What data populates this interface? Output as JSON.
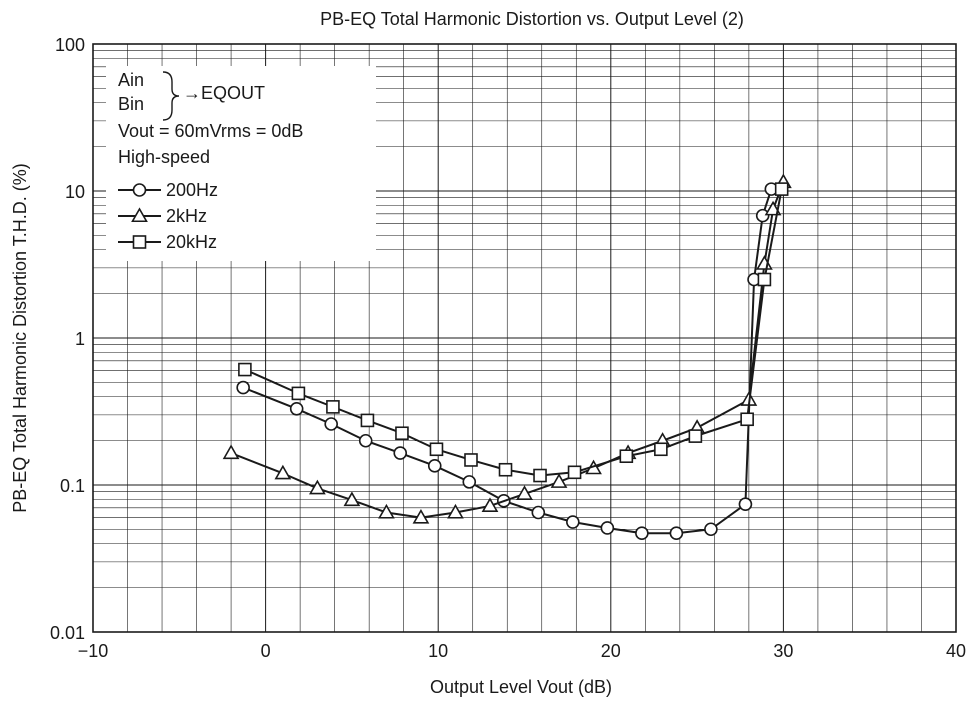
{
  "chart_data": {
    "type": "line",
    "title": "PB-EQ Total Harmonic Distortion vs. Output Level (2)",
    "xlabel": "Output Level  Vout  (dB)",
    "ylabel": "PB-EQ Total Harmonic Distortion  T.H.D.  (%)",
    "xlim": [
      -10,
      40
    ],
    "ylim": [
      0.01,
      100
    ],
    "yscale": "log",
    "grid": true,
    "legend_position": "top-left",
    "x_ticks": [
      "−10",
      "0",
      "10",
      "20",
      "30",
      "40"
    ],
    "y_ticks": [
      "0.01",
      "0.1",
      "1",
      "10",
      "100"
    ],
    "legend_conditions": {
      "line1": "Ain",
      "line2": "Bin",
      "arrow_label": "→EQOUT",
      "line3": "Vout = 60mVrms = 0dB",
      "line4": "High-speed"
    },
    "series": [
      {
        "name": "200Hz",
        "marker": "circle",
        "x": [
          -1.3,
          1.8,
          3.8,
          5.8,
          7.8,
          9.8,
          11.8,
          13.8,
          15.8,
          17.8,
          19.8,
          21.8,
          23.8,
          25.8,
          27.8,
          28.3,
          28.8,
          29.3
        ],
        "y": [
          0.46,
          0.33,
          0.26,
          0.2,
          0.165,
          0.135,
          0.105,
          0.078,
          0.065,
          0.056,
          0.051,
          0.047,
          0.047,
          0.05,
          0.074,
          2.5,
          6.8,
          10.3
        ]
      },
      {
        "name": "2kHz",
        "marker": "triangle",
        "x": [
          -2,
          1,
          3,
          5,
          7,
          9,
          11,
          13,
          15,
          17,
          19,
          21,
          23,
          25,
          28,
          28.9,
          29.4,
          30
        ],
        "y": [
          0.165,
          0.12,
          0.095,
          0.079,
          0.065,
          0.06,
          0.065,
          0.072,
          0.087,
          0.105,
          0.13,
          0.165,
          0.2,
          0.245,
          0.38,
          3.2,
          7.5,
          11.5
        ]
      },
      {
        "name": "20kHz",
        "marker": "square",
        "x": [
          -1.2,
          1.9,
          3.9,
          5.9,
          7.9,
          9.9,
          11.9,
          13.9,
          15.9,
          17.9,
          20.9,
          22.9,
          24.9,
          27.9,
          28.9,
          29.9
        ],
        "y": [
          0.61,
          0.42,
          0.34,
          0.275,
          0.225,
          0.175,
          0.148,
          0.127,
          0.116,
          0.122,
          0.157,
          0.175,
          0.215,
          0.28,
          2.5,
          10.3
        ]
      }
    ]
  }
}
